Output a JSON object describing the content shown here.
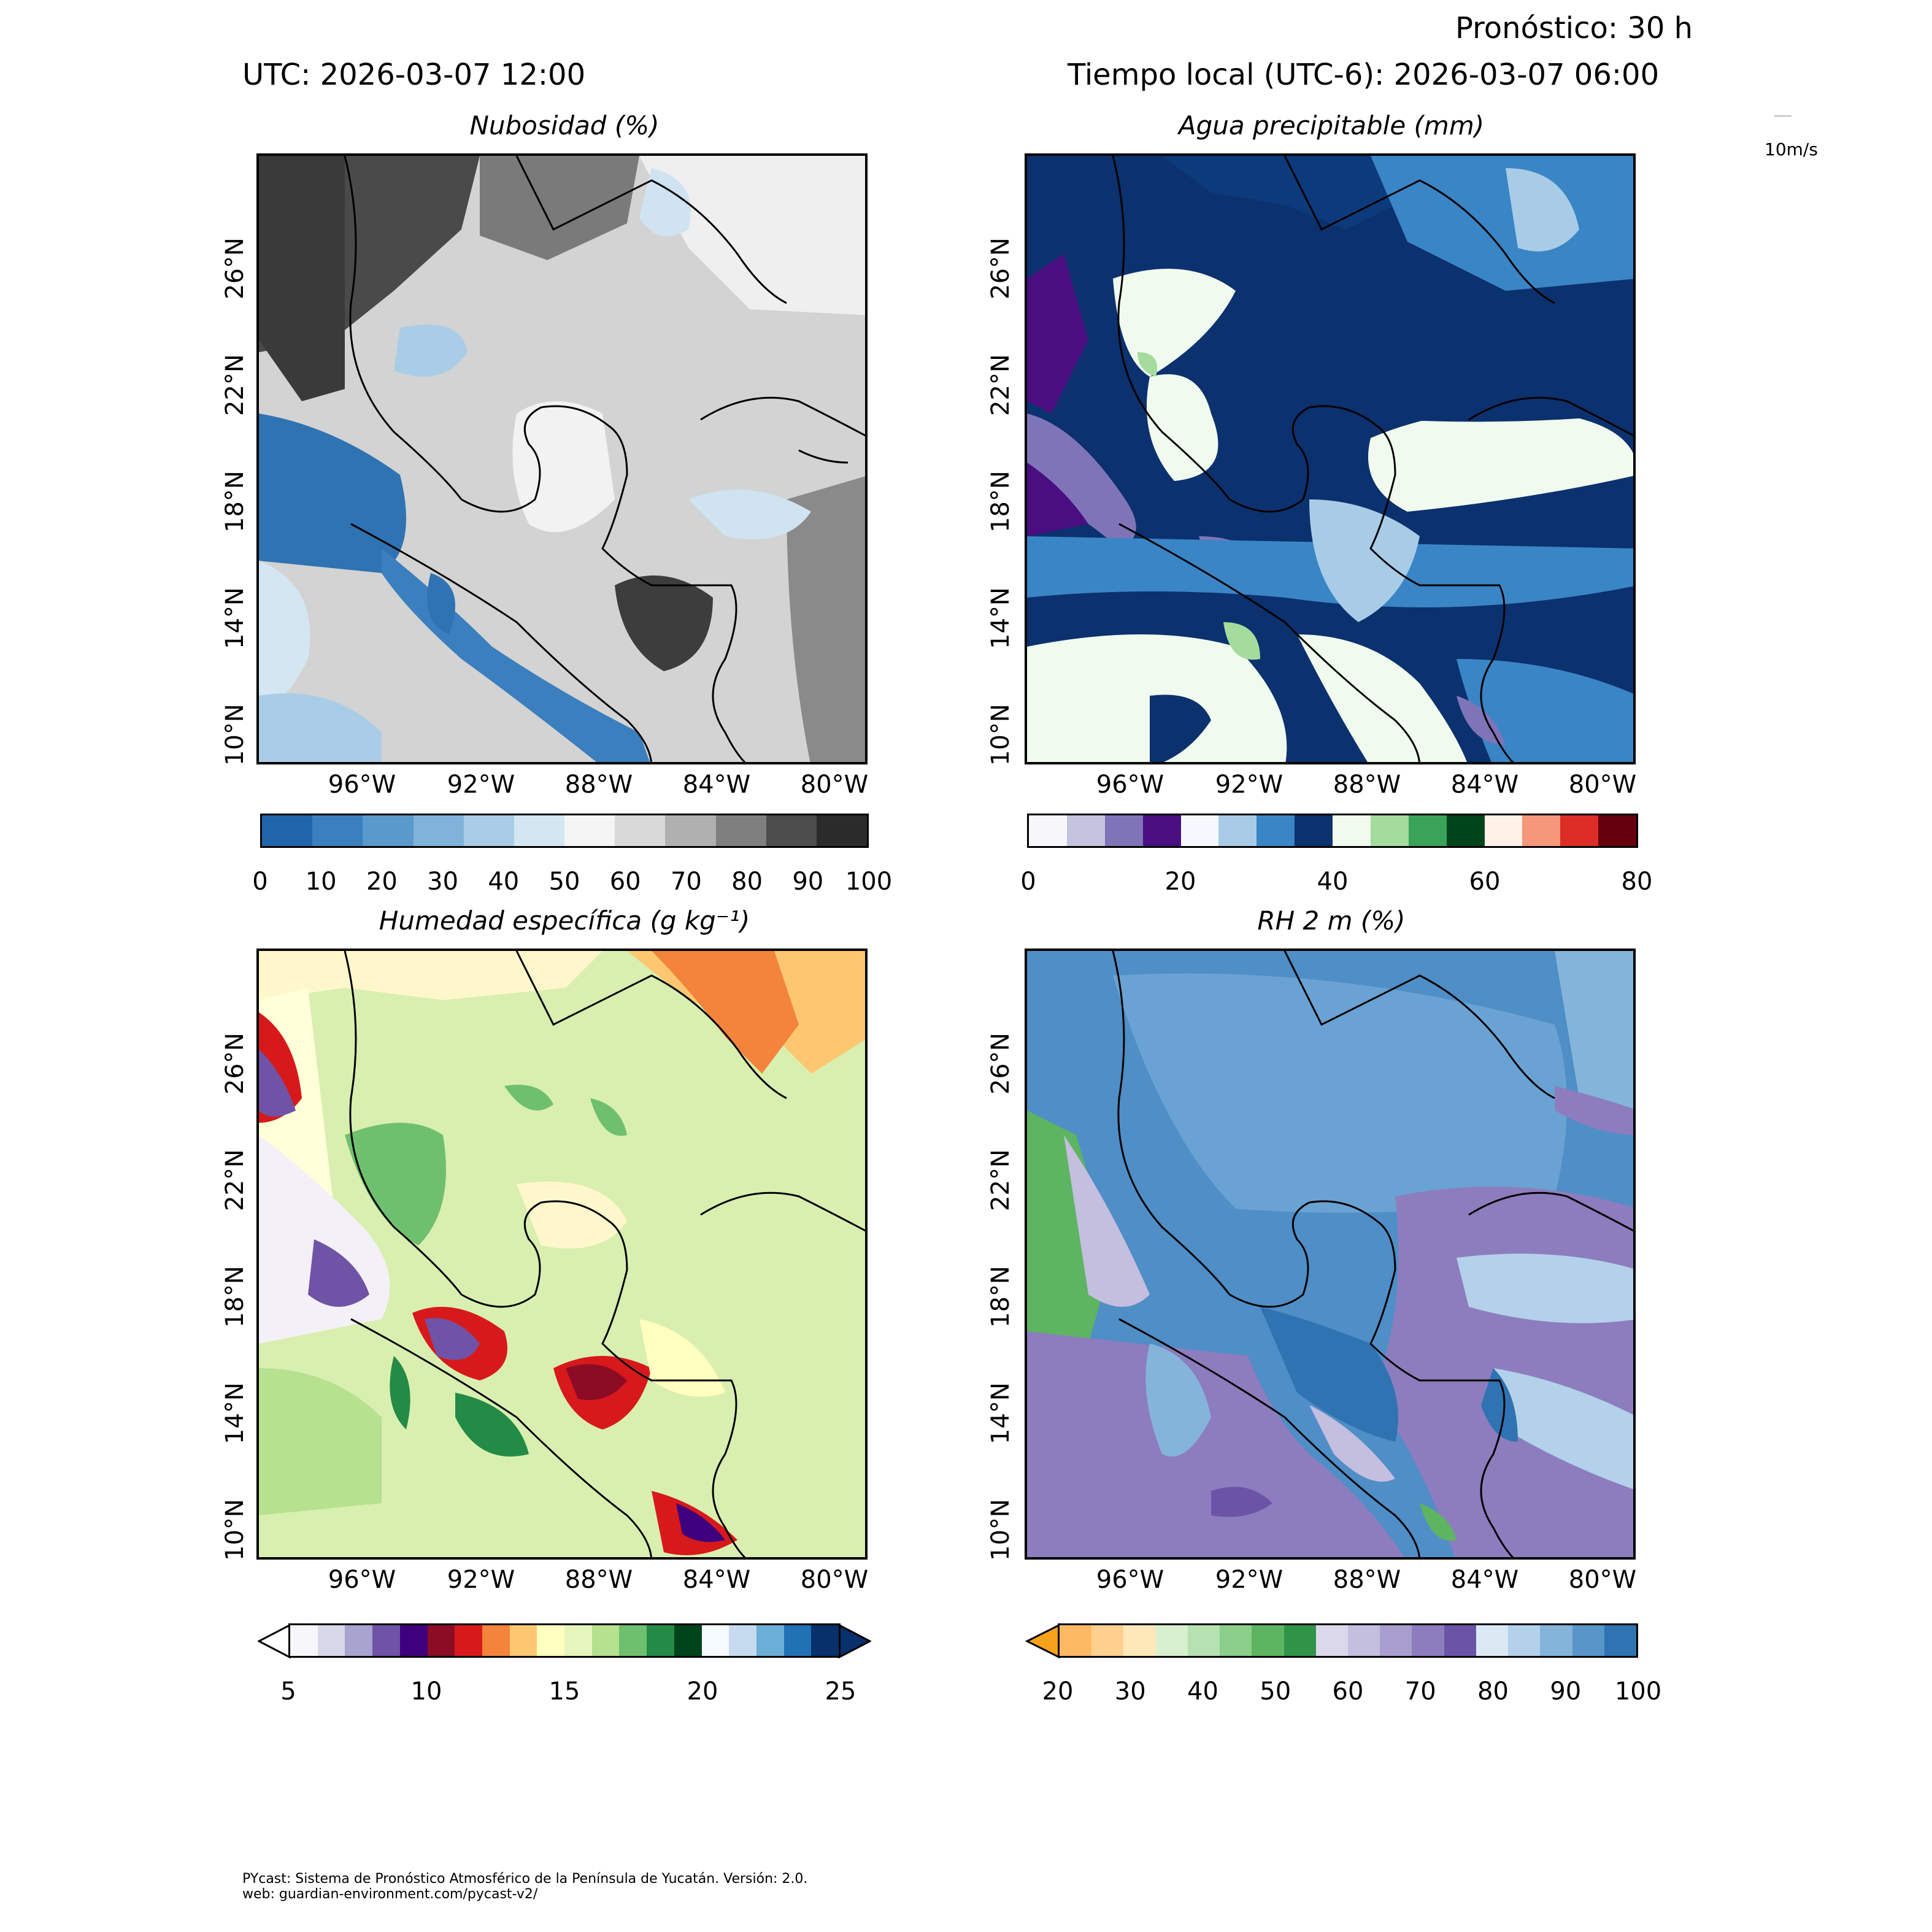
{
  "header": {
    "forecast": "Pronóstico: 30 h",
    "utc": "UTC:  2026-03-07 12:00",
    "local": "Tiempo local (UTC-6): 2026-03-07 06:00",
    "wind_key": "10m/s"
  },
  "panels": [
    {
      "title": "Nubosidad (%)",
      "lat_labels": [
        "26°N",
        "22°N",
        "18°N",
        "14°N",
        "10°N"
      ],
      "lon_labels": [
        "96°W",
        "92°W",
        "88°W",
        "84°W",
        "80°W"
      ],
      "colorbar": {
        "ticks": [
          "0",
          "10",
          "20",
          "30",
          "40",
          "50",
          "60",
          "70",
          "80",
          "90",
          "100"
        ],
        "colors": [
          "#2166ac",
          "#3b7fbe",
          "#5a99cc",
          "#80b3d9",
          "#a9cde6",
          "#d4e6f2",
          "#f5f5f5",
          "#d9d9d9",
          "#b0b0b0",
          "#7f7f7f",
          "#4d4d4d",
          "#2b2b2b"
        ]
      }
    },
    {
      "title": "Agua precipitable (mm)",
      "lat_labels": [
        "26°N",
        "22°N",
        "18°N",
        "14°N",
        "10°N"
      ],
      "lon_labels": [
        "96°W",
        "92°W",
        "88°W",
        "84°W",
        "80°W"
      ],
      "colorbar": {
        "ticks": [
          "0",
          "20",
          "40",
          "60",
          "80"
        ],
        "colors": [
          "#f7f7fb",
          "#c4c4e0",
          "#8074b8",
          "#4a0e80",
          "#f5f9ff",
          "#a8cce6",
          "#3a85c5",
          "#0b316e",
          "#f1faee",
          "#a3dc9c",
          "#3aa35a",
          "#00441b",
          "#fff1e8",
          "#f5977a",
          "#dc2d26",
          "#67000d"
        ]
      }
    },
    {
      "title": "Humedad específica (g kg⁻¹)",
      "lat_labels": [
        "26°N",
        "22°N",
        "18°N",
        "14°N",
        "10°N"
      ],
      "lon_labels": [
        "96°W",
        "92°W",
        "88°W",
        "84°W",
        "80°W"
      ],
      "colorbar": {
        "ticks": [
          "5",
          "10",
          "15",
          "20",
          "25"
        ],
        "colors": [
          "#f7f7fb",
          "#d8d8ea",
          "#a8a3cf",
          "#6f53a6",
          "#3f007d",
          "#8c0c25",
          "#d7191c",
          "#f4843c",
          "#fdc771",
          "#ffffbf",
          "#e6f5bc",
          "#b6e18f",
          "#6fc06e",
          "#238b45",
          "#00441b",
          "#f5fbff",
          "#c6dbef",
          "#6baed6",
          "#2171b5",
          "#08306b"
        ]
      }
    },
    {
      "title": "RH 2 m (%)",
      "lat_labels": [
        "26°N",
        "22°N",
        "18°N",
        "14°N",
        "10°N"
      ],
      "lon_labels": [
        "96°W",
        "92°W",
        "88°W",
        "84°W",
        "80°W"
      ],
      "colorbar": {
        "ticks": [
          "20",
          "30",
          "40",
          "50",
          "60",
          "70",
          "80",
          "90",
          "100"
        ],
        "colors": [
          "#fdb863",
          "#fed090",
          "#fee7b8",
          "#d8efd0",
          "#b6e1b0",
          "#8bcf8a",
          "#5db461",
          "#2f9447",
          "#dcd8ec",
          "#c4bedf",
          "#a99fcf",
          "#8d7dbe",
          "#6b54a8",
          "#dbe9f5",
          "#b3d1ea",
          "#84b4da",
          "#5895c8",
          "#2f73b2"
        ]
      }
    }
  ],
  "footer": {
    "line1": "PYcast: Sistema de Pronóstico Atmosférico de la Península de Yucatán. Versión: 2.0.",
    "line2": "web: guardian-environment.com/pycast-v2/"
  }
}
